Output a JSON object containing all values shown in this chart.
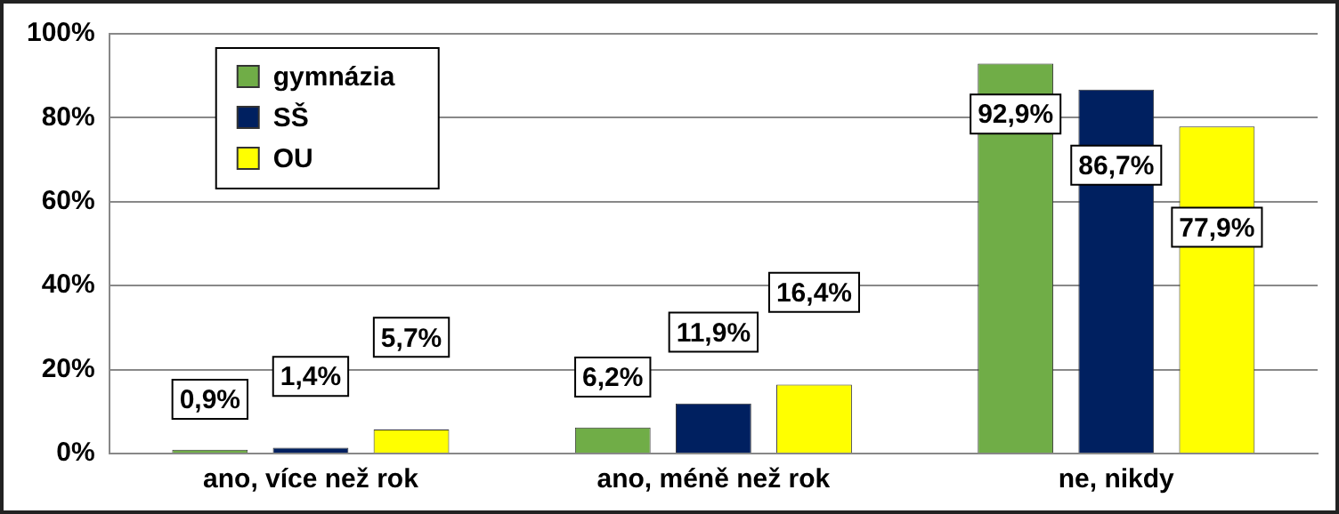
{
  "chart_data": {
    "type": "bar",
    "categories": [
      "ano, více než rok",
      "ano, méně než rok",
      "ne, nikdy"
    ],
    "series": [
      {
        "name": "gymnázia",
        "color": "#70ad47",
        "values": [
          0.9,
          6.2,
          92.9
        ],
        "value_labels": [
          "0,9%",
          "6,2%",
          "92,9%"
        ]
      },
      {
        "name": "SŠ",
        "color": "#002060",
        "values": [
          1.4,
          11.9,
          86.7
        ],
        "value_labels": [
          "1,4%",
          "11,9%",
          "86,7%"
        ]
      },
      {
        "name": "OU",
        "color": "#ffff00",
        "values": [
          5.7,
          16.4,
          77.9
        ],
        "value_labels": [
          "5,7%",
          "16,4%",
          "77,9%"
        ]
      }
    ],
    "ylim": [
      0,
      100
    ],
    "yticks": [
      {
        "value": 0,
        "label": "0%"
      },
      {
        "value": 20,
        "label": "20%"
      },
      {
        "value": 40,
        "label": "40%"
      },
      {
        "value": 60,
        "label": "60%"
      },
      {
        "value": 80,
        "label": "80%"
      },
      {
        "value": 100,
        "label": "100%"
      }
    ],
    "grid": "y",
    "legend": "top left"
  }
}
